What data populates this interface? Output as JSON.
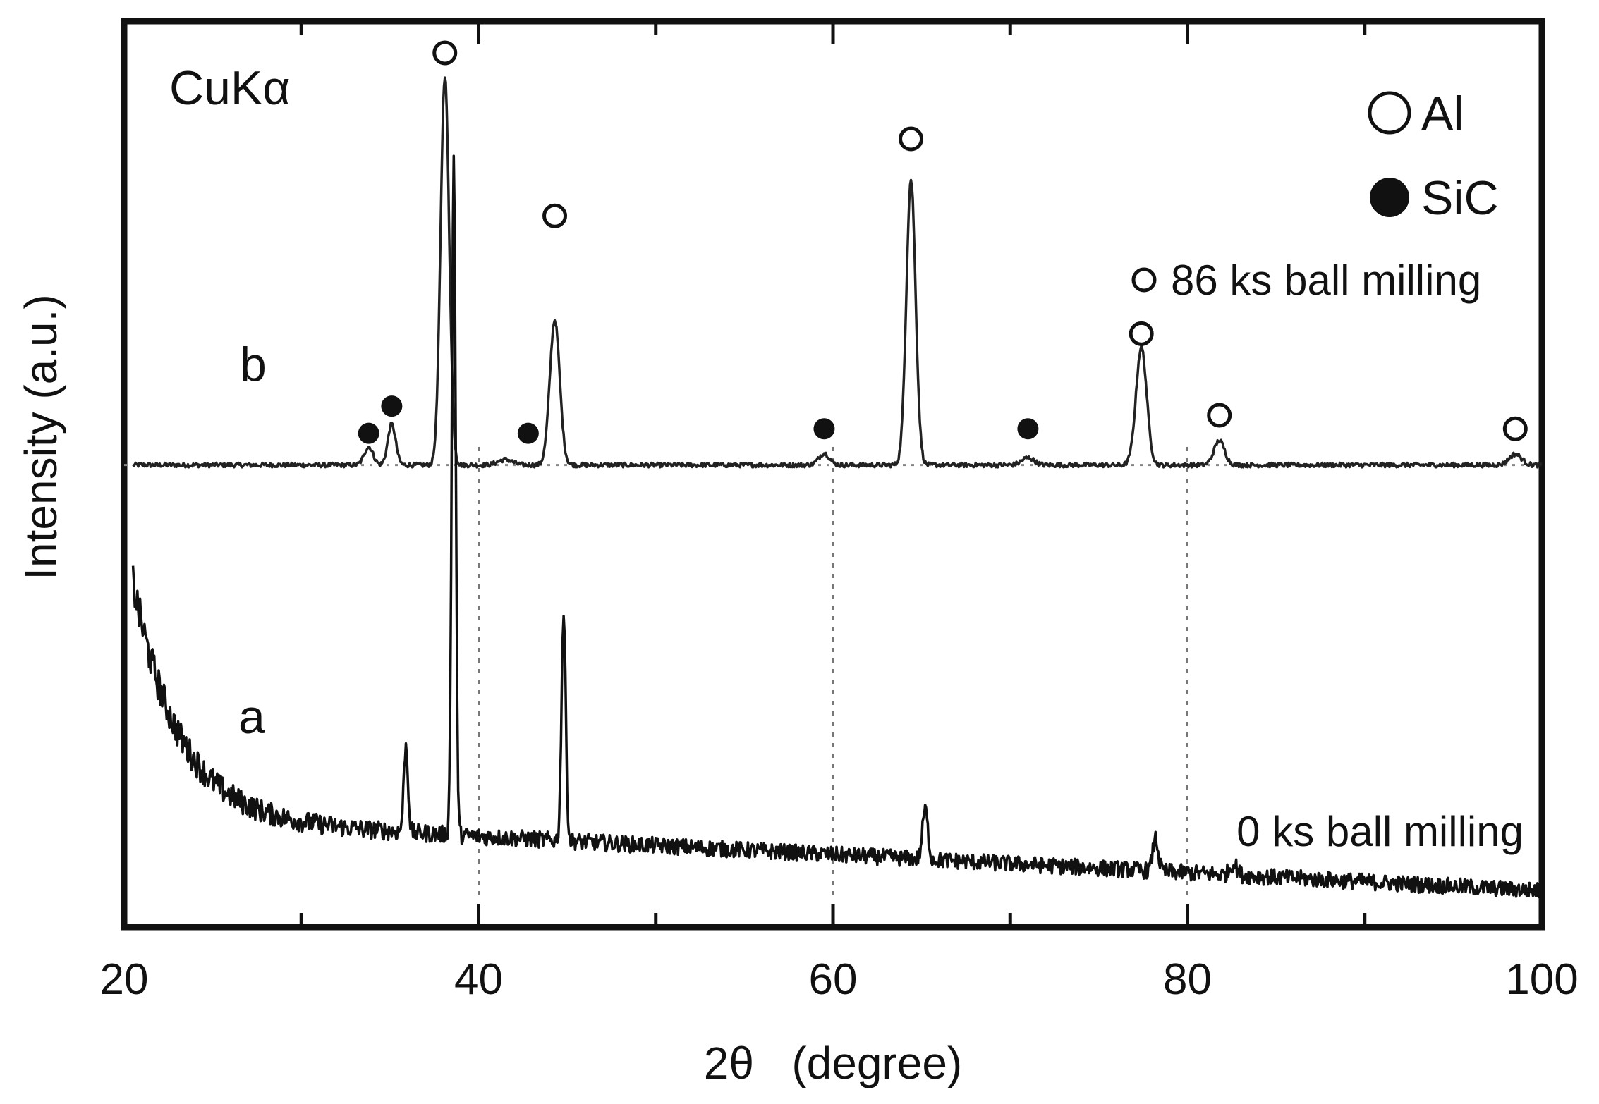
{
  "chart_data": {
    "type": "line",
    "title": "",
    "xlabel": "2θ   (degree)",
    "ylabel": "Intensity (a.u.)",
    "xlim": [
      20,
      100
    ],
    "xticks": [
      20,
      40,
      60,
      80,
      100
    ],
    "xtick_labels": [
      "20",
      "40",
      "60",
      "80",
      "100"
    ],
    "ylim": [
      0,
      100
    ],
    "grid": false,
    "radiation_label": "CuKα",
    "reference_lines_x": [
      40,
      60,
      80
    ],
    "legend": {
      "position": "top-right",
      "entries": [
        {
          "label": "Al",
          "marker": "open-circle"
        },
        {
          "label": "SiC",
          "marker": "filled-circle"
        }
      ]
    },
    "series": [
      {
        "curve_label": "b",
        "annotation": "86 ks  ball milling",
        "baseline": 51,
        "noise": 0.25,
        "background": {
          "type": "flat"
        },
        "peaks": [
          {
            "x": 33.8,
            "h": 2.0,
            "w": 0.25
          },
          {
            "x": 35.1,
            "h": 4.5,
            "w": 0.22
          },
          {
            "x": 38.1,
            "h": 43.0,
            "w": 0.24
          },
          {
            "x": 41.5,
            "h": 0.6,
            "w": 0.4
          },
          {
            "x": 44.3,
            "h": 16.0,
            "w": 0.28
          },
          {
            "x": 59.5,
            "h": 1.3,
            "w": 0.3
          },
          {
            "x": 64.4,
            "h": 31.5,
            "w": 0.26
          },
          {
            "x": 71.0,
            "h": 0.8,
            "w": 0.35
          },
          {
            "x": 77.4,
            "h": 13.0,
            "w": 0.3
          },
          {
            "x": 81.8,
            "h": 2.7,
            "w": 0.3
          },
          {
            "x": 98.5,
            "h": 1.2,
            "w": 0.35
          }
        ],
        "markers": [
          {
            "x": 38.1,
            "y": 96.5,
            "phase": "Al"
          },
          {
            "x": 44.3,
            "y": 78.5,
            "phase": "Al"
          },
          {
            "x": 64.4,
            "y": 87.0,
            "phase": "Al"
          },
          {
            "x": 77.4,
            "y": 65.5,
            "phase": "Al"
          },
          {
            "x": 81.8,
            "y": 56.5,
            "phase": "Al"
          },
          {
            "x": 98.5,
            "y": 55.0,
            "phase": "Al"
          },
          {
            "x": 33.8,
            "y": 54.5,
            "phase": "SiC"
          },
          {
            "x": 35.1,
            "y": 57.5,
            "phase": "SiC"
          },
          {
            "x": 42.8,
            "y": 54.5,
            "phase": "SiC"
          },
          {
            "x": 59.5,
            "y": 55.0,
            "phase": "SiC"
          },
          {
            "x": 71.0,
            "y": 55.0,
            "phase": "SiC"
          }
        ]
      },
      {
        "curve_label": "a",
        "annotation": "0 ks ball milling",
        "baseline": 4,
        "noise": 0.9,
        "background": {
          "type": "decay",
          "offset": 8,
          "amplitude": 26,
          "scale": 2.6
        },
        "peaks": [
          {
            "x": 35.9,
            "h": 9.5,
            "w": 0.12
          },
          {
            "x": 38.6,
            "h": 75.0,
            "w": 0.11
          },
          {
            "x": 44.8,
            "h": 25.0,
            "w": 0.12
          },
          {
            "x": 65.2,
            "h": 5.5,
            "w": 0.15
          },
          {
            "x": 78.2,
            "h": 3.6,
            "w": 0.15
          },
          {
            "x": 82.6,
            "h": 1.2,
            "w": 0.2
          }
        ]
      }
    ]
  }
}
